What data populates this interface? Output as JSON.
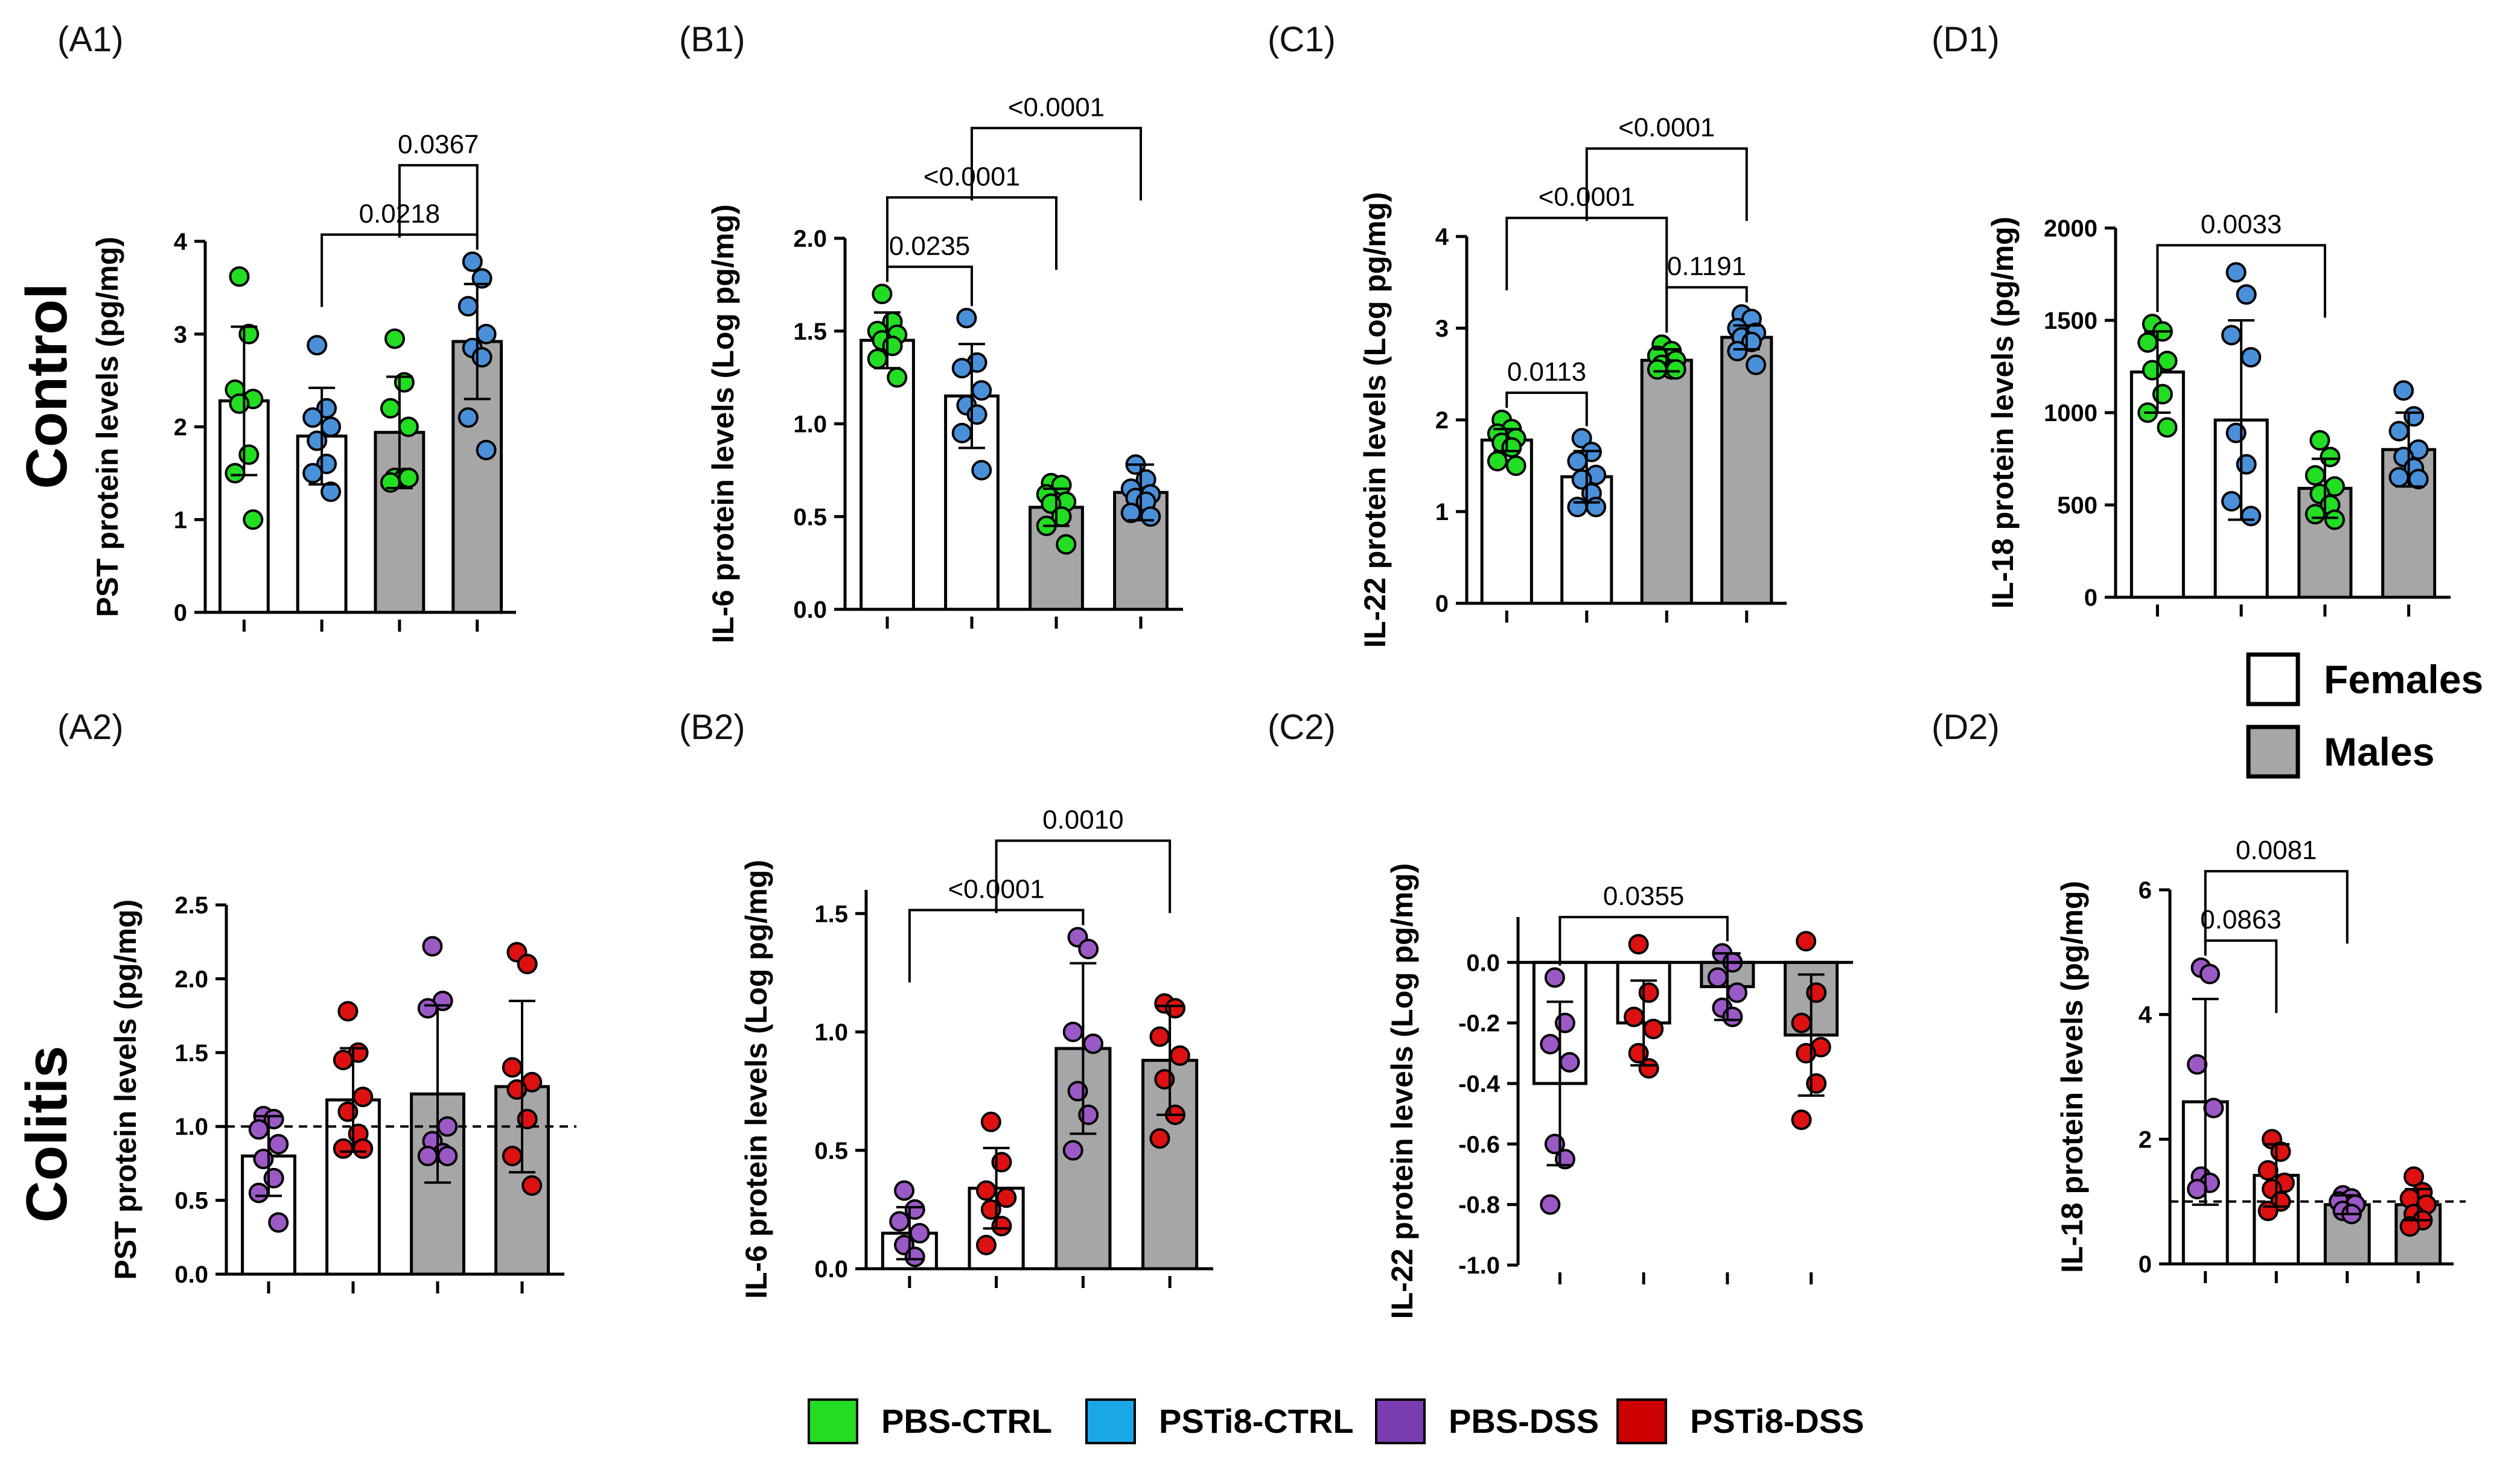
{
  "row_labels": {
    "control": "Control",
    "colitis": "Colitis"
  },
  "colors": {
    "PBS-CTRL": "#22dd22",
    "PSTi8-CTRL": "#4a90d9",
    "PBS-DSS": "#9b59c6",
    "PSTi8-DSS": "#dd1111",
    "female_bar": "#ffffff",
    "male_bar": "#a6a6a6"
  },
  "legend": {
    "groups": [
      {
        "label": "PBS-CTRL",
        "color": "#22dd22"
      },
      {
        "label": "PSTi8-CTRL",
        "color": "#1aa7e8"
      },
      {
        "label": "PBS-DSS",
        "color": "#7a3db0"
      },
      {
        "label": "PSTi8-DSS",
        "color": "#cc0000"
      }
    ],
    "sex": [
      {
        "label": "Females",
        "fill": "#ffffff"
      },
      {
        "label": "Males",
        "fill": "#a6a6a6"
      }
    ]
  },
  "chart_data": [
    {
      "id": "A1",
      "panel_label": "(A1)",
      "type": "bar",
      "ylabel": "PST protein levels (pg/mg)",
      "ylim": [
        0,
        4
      ],
      "yticks": [
        0,
        1,
        2,
        3,
        4
      ],
      "ytick_labels": [
        "0",
        "1",
        "2",
        "3",
        "4"
      ],
      "categories": [
        "PBS-CTRL Female",
        "PSTi8-CTRL Female",
        "PBS-CTRL Male",
        "PSTi8-CTRL Male"
      ],
      "bar_fill": [
        "female",
        "female",
        "male",
        "male"
      ],
      "point_group": [
        "PBS-CTRL",
        "PSTi8-CTRL",
        "PBS-CTRL",
        "PSTi8-CTRL"
      ],
      "values": [
        2.28,
        1.9,
        1.94,
        2.92
      ],
      "sd": [
        0.8,
        0.52,
        0.6,
        0.62
      ],
      "points": [
        [
          3.62,
          3.0,
          2.4,
          2.3,
          2.25,
          1.7,
          1.5,
          1.0
        ],
        [
          2.88,
          2.2,
          2.1,
          2.0,
          1.85,
          1.6,
          1.5,
          1.3
        ],
        [
          2.95,
          2.48,
          2.2,
          2.0,
          1.45,
          1.45,
          1.4,
          1.45
        ],
        [
          3.78,
          3.6,
          3.3,
          3.0,
          2.85,
          2.75,
          2.1,
          1.75
        ]
      ],
      "comparisons": [
        {
          "i": 1,
          "j": 3,
          "label": "0.0218"
        },
        {
          "i": 2,
          "j": 3,
          "label": "0.0367"
        }
      ]
    },
    {
      "id": "B1",
      "panel_label": "(B1)",
      "type": "bar",
      "ylabel": "IL-6 protein levels (Log pg/mg)",
      "ylim": [
        0,
        2
      ],
      "yticks": [
        0,
        0.5,
        1,
        1.5,
        2
      ],
      "ytick_labels": [
        "0.0",
        "0.5",
        "1.0",
        "1.5",
        "2.0"
      ],
      "categories": [
        "PBS-CTRL Female",
        "PSTi8-CTRL Female",
        "PBS-CTRL Male",
        "PSTi8-CTRL Male"
      ],
      "bar_fill": [
        "female",
        "female",
        "male",
        "male"
      ],
      "point_group": [
        "PBS-CTRL",
        "PSTi8-CTRL",
        "PBS-CTRL",
        "PSTi8-CTRL"
      ],
      "values": [
        1.45,
        1.15,
        0.55,
        0.63
      ],
      "sd": [
        0.15,
        0.28,
        0.1,
        0.15
      ],
      "points": [
        [
          1.7,
          1.55,
          1.5,
          1.48,
          1.45,
          1.42,
          1.35,
          1.25
        ],
        [
          1.57,
          1.33,
          1.3,
          1.18,
          1.1,
          1.05,
          0.95,
          0.75
        ],
        [
          0.68,
          0.67,
          0.62,
          0.58,
          0.57,
          0.5,
          0.45,
          0.35
        ],
        [
          0.78,
          0.7,
          0.65,
          0.62,
          0.6,
          0.58,
          0.52,
          0.5
        ]
      ],
      "comparisons": [
        {
          "i": 0,
          "j": 1,
          "label": "0.0235"
        },
        {
          "i": 0,
          "j": 2,
          "label": "<0.0001"
        },
        {
          "i": 1,
          "j": 3,
          "label": "<0.0001"
        }
      ]
    },
    {
      "id": "C1",
      "panel_label": "(C1)",
      "type": "bar",
      "ylabel": "IL-22 protein levels (Log pg/mg)",
      "ylim": [
        0,
        4
      ],
      "yticks": [
        0,
        1,
        2,
        3,
        4
      ],
      "ytick_labels": [
        "0",
        "1",
        "2",
        "3",
        "4"
      ],
      "categories": [
        "PBS-CTRL Female",
        "PSTi8-CTRL Female",
        "PBS-CTRL Male",
        "PSTi8-CTRL Male"
      ],
      "bar_fill": [
        "female",
        "female",
        "male",
        "male"
      ],
      "point_group": [
        "PBS-CTRL",
        "PSTi8-CTRL",
        "PBS-CTRL",
        "PSTi8-CTRL"
      ],
      "values": [
        1.78,
        1.38,
        2.65,
        2.9
      ],
      "sd": [
        0.12,
        0.28,
        0.12,
        0.13
      ],
      "points": [
        [
          2.0,
          1.9,
          1.85,
          1.8,
          1.75,
          1.7,
          1.55,
          1.5
        ],
        [
          1.8,
          1.65,
          1.55,
          1.4,
          1.35,
          1.2,
          1.05,
          1.05
        ],
        [
          2.82,
          2.75,
          2.7,
          2.65,
          2.6,
          2.55,
          2.55,
          2.55
        ],
        [
          3.15,
          3.1,
          3.0,
          2.95,
          2.9,
          2.85,
          2.75,
          2.6
        ]
      ],
      "comparisons": [
        {
          "i": 0,
          "j": 1,
          "label": "0.0113"
        },
        {
          "i": 2,
          "j": 3,
          "label": "0.1191"
        },
        {
          "i": 0,
          "j": 2,
          "label": "<0.0001"
        },
        {
          "i": 1,
          "j": 3,
          "label": "<0.0001"
        }
      ]
    },
    {
      "id": "D1",
      "panel_label": "(D1)",
      "type": "bar",
      "ylabel": "IL-18 protein levels (pg/mg)",
      "ylim": [
        0,
        2000
      ],
      "yticks": [
        0,
        500,
        1000,
        1500,
        2000
      ],
      "ytick_labels": [
        "0",
        "500",
        "1000",
        "1500",
        "2000"
      ],
      "categories": [
        "PBS-CTRL Female",
        "PSTi8-CTRL Female",
        "PBS-CTRL Male",
        "PSTi8-CTRL Male"
      ],
      "bar_fill": [
        "female",
        "female",
        "male",
        "male"
      ],
      "point_group": [
        "PBS-CTRL",
        "PSTi8-CTRL",
        "PBS-CTRL",
        "PSTi8-CTRL"
      ],
      "values": [
        1220,
        960,
        590,
        800
      ],
      "sd": [
        220,
        540,
        160,
        200
      ],
      "points": [
        [
          1480,
          1440,
          1380,
          1280,
          1230,
          1100,
          1000,
          920
        ],
        [
          1760,
          1640,
          1420,
          1300,
          890,
          720,
          520,
          440
        ],
        [
          850,
          760,
          660,
          600,
          560,
          500,
          450,
          420
        ],
        [
          1120,
          980,
          900,
          800,
          760,
          700,
          650,
          640
        ]
      ],
      "comparisons": [
        {
          "i": 0,
          "j": 2,
          "label": "0.0033"
        }
      ]
    },
    {
      "id": "A2",
      "panel_label": "(A2)",
      "type": "bar",
      "ylabel": "PST protein levels (pg/mg)",
      "ylim": [
        0,
        2.5
      ],
      "yticks": [
        0,
        0.5,
        1,
        1.5,
        2,
        2.5
      ],
      "ytick_labels": [
        "0.0",
        "0.5",
        "1.0",
        "1.5",
        "2.0",
        "2.5"
      ],
      "refline": 1.0,
      "categories": [
        "PBS-DSS Female",
        "PSTi8-DSS Female",
        "PBS-DSS Male",
        "PSTi8-DSS Male"
      ],
      "bar_fill": [
        "female",
        "female",
        "male",
        "male"
      ],
      "point_group": [
        "PBS-DSS",
        "PSTi8-DSS",
        "PBS-DSS",
        "PSTi8-DSS"
      ],
      "values": [
        0.8,
        1.18,
        1.22,
        1.27
      ],
      "sd": [
        0.27,
        0.35,
        0.6,
        0.58
      ],
      "points": [
        [
          1.07,
          1.05,
          0.98,
          0.88,
          0.78,
          0.65,
          0.55,
          0.35
        ],
        [
          1.78,
          1.5,
          1.45,
          1.2,
          1.1,
          0.95,
          0.85,
          0.85
        ],
        [
          2.22,
          1.85,
          1.8,
          1.0,
          0.9,
          0.82,
          0.8,
          0.8
        ],
        [
          2.18,
          2.1,
          1.4,
          1.3,
          1.25,
          1.05,
          0.8,
          0.6
        ]
      ],
      "comparisons": []
    },
    {
      "id": "B2",
      "panel_label": "(B2)",
      "type": "bar",
      "ylabel": "IL-6 protein levels (Log pg/mg)",
      "ylim": [
        0,
        1.6
      ],
      "yticks": [
        0,
        0.5,
        1,
        1.5
      ],
      "ytick_labels": [
        "0.0",
        "0.5",
        "1.0",
        "1.5"
      ],
      "categories": [
        "PBS-DSS Female",
        "PSTi8-DSS Female",
        "PBS-DSS Male",
        "PSTi8-DSS Male"
      ],
      "bar_fill": [
        "female",
        "female",
        "male",
        "male"
      ],
      "point_group": [
        "PBS-DSS",
        "PSTi8-DSS",
        "PBS-DSS",
        "PSTi8-DSS"
      ],
      "values": [
        0.15,
        0.34,
        0.93,
        0.88
      ],
      "sd": [
        0.11,
        0.17,
        0.36,
        0.23
      ],
      "points": [
        [
          0.33,
          0.25,
          0.2,
          0.15,
          0.1,
          0.05
        ],
        [
          0.62,
          0.45,
          0.33,
          0.3,
          0.25,
          0.18,
          0.1
        ],
        [
          1.4,
          1.35,
          1.0,
          0.95,
          0.75,
          0.65,
          0.5
        ],
        [
          1.12,
          1.1,
          0.98,
          0.9,
          0.8,
          0.65,
          0.55
        ]
      ],
      "comparisons": [
        {
          "i": 0,
          "j": 2,
          "label": "<0.0001"
        },
        {
          "i": 1,
          "j": 3,
          "label": "0.0010"
        }
      ]
    },
    {
      "id": "C2",
      "panel_label": "(C2)",
      "type": "bar",
      "ylabel": "IL-22 protein levels (Log pg/mg)",
      "ylim": [
        -1,
        0.15
      ],
      "yticks": [
        -1,
        -0.8,
        -0.6,
        -0.4,
        -0.2,
        0
      ],
      "ytick_labels": [
        "-1.0",
        "-0.8",
        "-0.6",
        "-0.4",
        "-0.2",
        "0.0"
      ],
      "categories": [
        "PBS-DSS Female",
        "PSTi8-DSS Female",
        "PBS-DSS Male",
        "PSTi8-DSS Male"
      ],
      "bar_fill": [
        "female",
        "female",
        "male",
        "male"
      ],
      "point_group": [
        "PBS-DSS",
        "PSTi8-DSS",
        "PBS-DSS",
        "PSTi8-DSS"
      ],
      "values": [
        -0.4,
        -0.2,
        -0.08,
        -0.24
      ],
      "sd": [
        0.27,
        0.14,
        0.11,
        0.2
      ],
      "points": [
        [
          -0.05,
          -0.2,
          -0.27,
          -0.33,
          -0.6,
          -0.65,
          -0.8
        ],
        [
          0.06,
          -0.1,
          -0.18,
          -0.22,
          -0.3,
          -0.35
        ],
        [
          0.03,
          0.0,
          -0.05,
          -0.1,
          -0.15,
          -0.18
        ],
        [
          0.07,
          -0.1,
          -0.2,
          -0.28,
          -0.3,
          -0.4,
          -0.52
        ]
      ],
      "comparisons": [
        {
          "i": 0,
          "j": 2,
          "label": "0.0355"
        }
      ]
    },
    {
      "id": "D2",
      "panel_label": "(D2)",
      "type": "bar",
      "ylabel": "IL-18 protein levels (pg/mg)",
      "ylim": [
        0,
        6
      ],
      "yticks": [
        0,
        2,
        4,
        6
      ],
      "ytick_labels": [
        "0",
        "2",
        "4",
        "6"
      ],
      "refline": 1.0,
      "categories": [
        "PBS-DSS Female",
        "PSTi8-DSS Female",
        "PBS-DSS Male",
        "PSTi8-DSS Male"
      ],
      "bar_fill": [
        "female",
        "female",
        "male",
        "male"
      ],
      "point_group": [
        "PBS-DSS",
        "PSTi8-DSS",
        "PBS-DSS",
        "PSTi8-DSS"
      ],
      "values": [
        2.6,
        1.42,
        0.95,
        0.95
      ],
      "sd": [
        1.65,
        0.5,
        0.15,
        0.25
      ],
      "points": [
        [
          4.75,
          4.65,
          3.2,
          2.5,
          1.4,
          1.3,
          1.2
        ],
        [
          2.0,
          1.8,
          1.5,
          1.3,
          1.2,
          1.0,
          0.85
        ],
        [
          1.1,
          1.05,
          1.0,
          0.95,
          0.85,
          0.8
        ],
        [
          1.4,
          1.15,
          1.05,
          0.95,
          0.8,
          0.7,
          0.6
        ]
      ],
      "comparisons": [
        {
          "i": 0,
          "j": 1,
          "label": "0.0863"
        },
        {
          "i": 0,
          "j": 2,
          "label": "0.0081"
        }
      ]
    }
  ]
}
